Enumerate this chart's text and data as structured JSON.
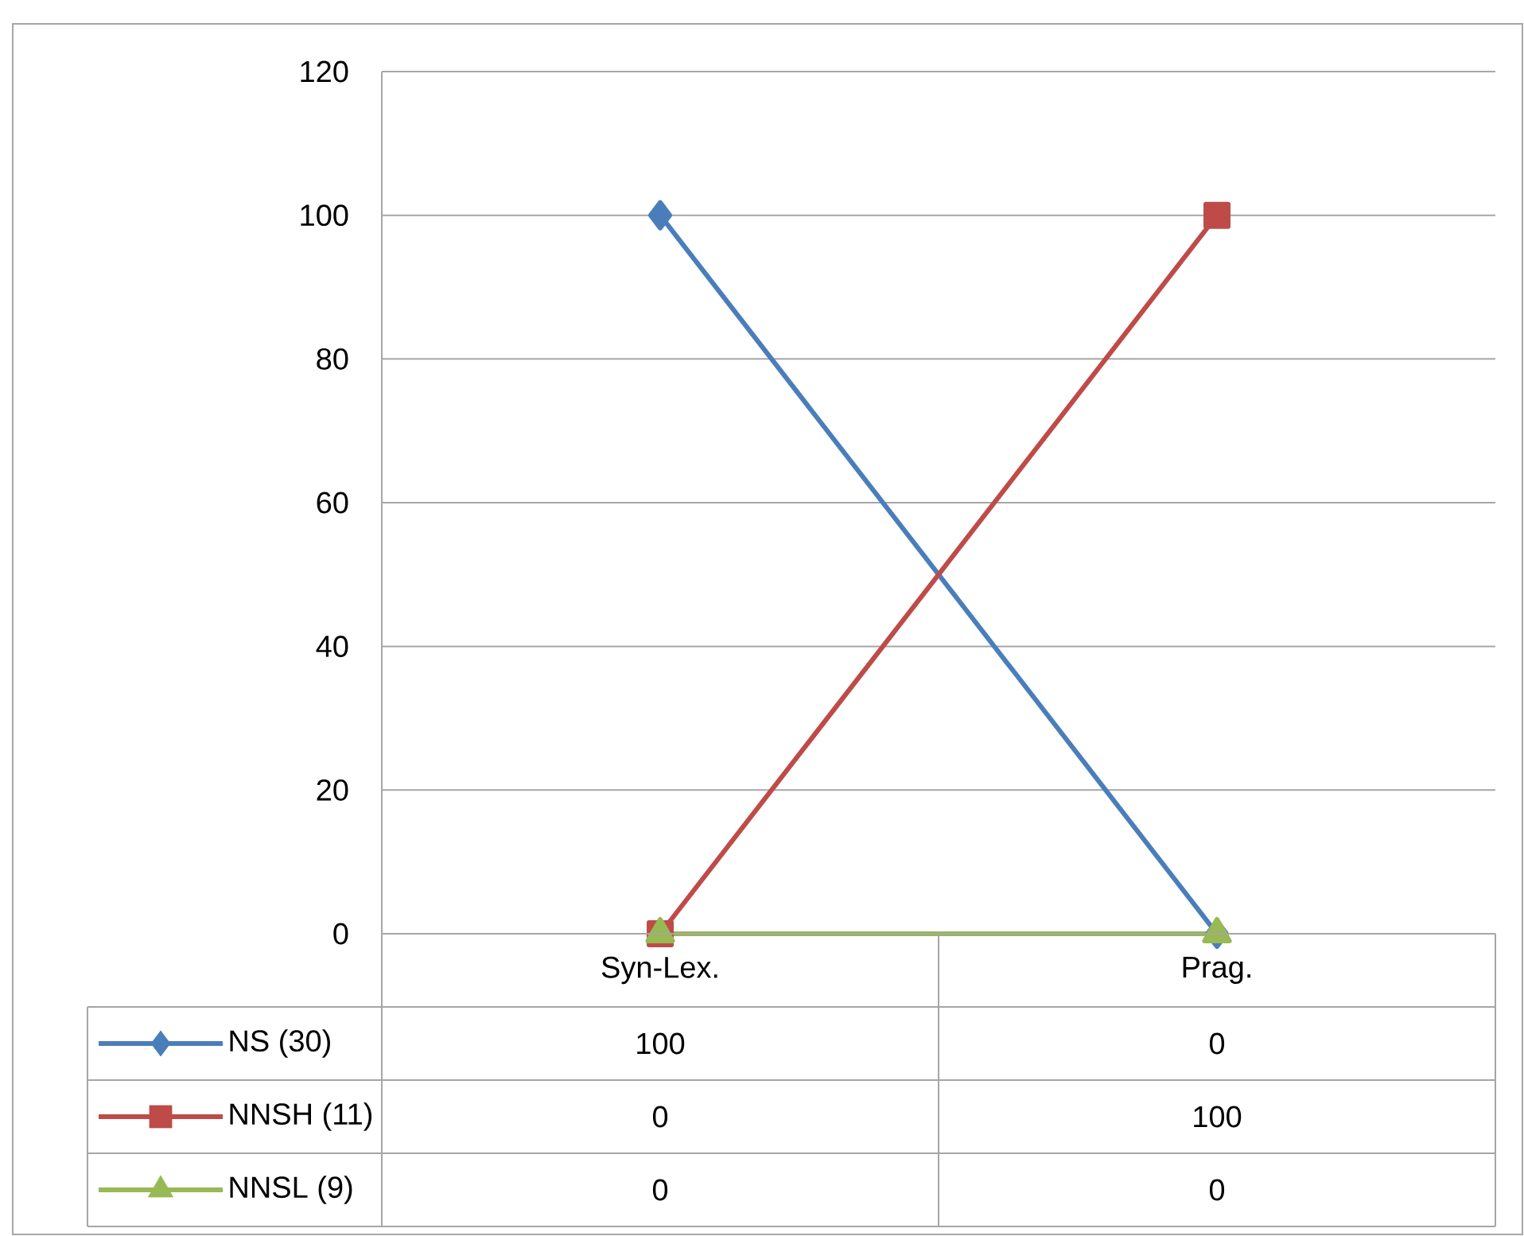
{
  "chart_data": {
    "type": "line",
    "categories": [
      "Syn-Lex.",
      "Prag."
    ],
    "series": [
      {
        "name": "NS (30)",
        "color": "#4a7ebb",
        "marker": "diamond",
        "values": [
          100,
          0
        ]
      },
      {
        "name": "NNSH (11)",
        "color": "#be4b48",
        "marker": "square",
        "values": [
          0,
          100
        ]
      },
      {
        "name": "NNSL (9)",
        "color": "#98b954",
        "marker": "triangle",
        "values": [
          0,
          0
        ]
      }
    ],
    "ylim": [
      0,
      120
    ],
    "yticks": [
      0,
      20,
      40,
      60,
      80,
      100,
      120
    ],
    "grid": "y",
    "legend": "bottom",
    "data_labels": true
  }
}
